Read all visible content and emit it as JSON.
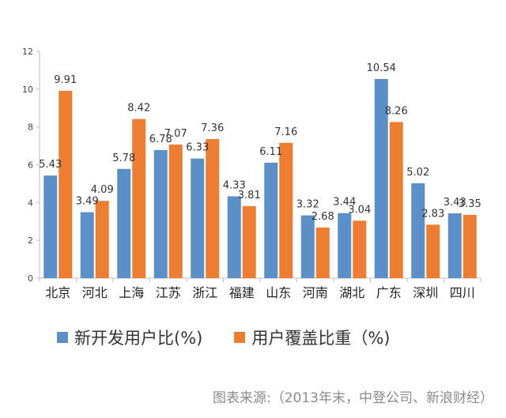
{
  "chart_data": {
    "type": "bar",
    "categories": [
      "北京",
      "河北",
      "上海",
      "江苏",
      "浙江",
      "福建",
      "山东",
      "河南",
      "湖北",
      "广东",
      "深圳",
      "四川"
    ],
    "series": [
      {
        "name": "新开发用户比(%)",
        "color": "#5b8fc7",
        "values": [
          5.43,
          3.49,
          5.78,
          6.78,
          6.33,
          4.33,
          6.11,
          3.32,
          3.44,
          10.54,
          5.02,
          3.43
        ],
        "labels": [
          "5.43",
          "3.49",
          "5.78",
          "6.78",
          "6.33",
          "4.33",
          "6.11",
          "3.32",
          "3.44",
          "10.54",
          "5.02",
          "3.43"
        ]
      },
      {
        "name": "用户覆盖比重（%)",
        "color": "#ed7d31",
        "values": [
          9.91,
          4.09,
          8.42,
          7.07,
          7.36,
          3.81,
          7.16,
          2.68,
          3.04,
          8.26,
          2.83,
          3.35
        ],
        "labels": [
          "9.91",
          "4.09",
          "8.42",
          "7.07",
          "7.36",
          "3.81",
          "7.16",
          "2.68",
          "3.04",
          "8.26",
          "2.83",
          "3.35"
        ]
      }
    ],
    "yticks": [
      "0",
      "2",
      "4",
      "6",
      "8",
      "10",
      "12"
    ],
    "ylim": [
      0,
      12
    ],
    "title": "",
    "xlabel": "",
    "ylabel": "",
    "legend_position": "bottom"
  },
  "source_note": "图表来源:（2013年末，中登公司、新浪财经）"
}
